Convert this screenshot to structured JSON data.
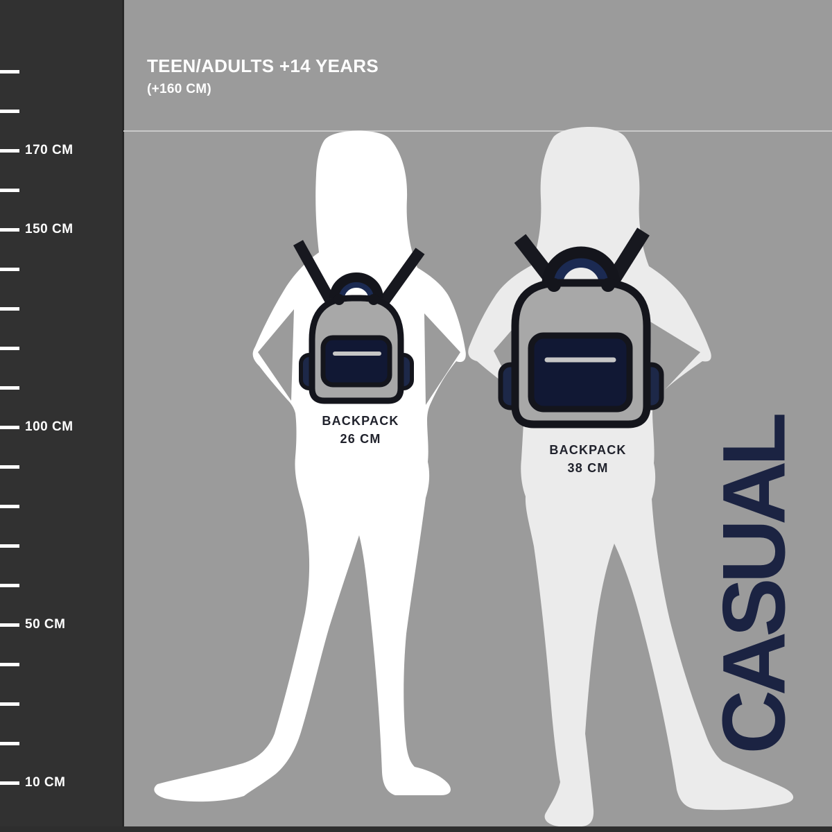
{
  "meta": {
    "description": "Backpack size guide infographic comparing two casual backpack sizes on teen/adult silhouettes against a height ruler"
  },
  "header": {
    "title": "TEEN/ADULTS +14 YEARS",
    "subtitle": "(+160 CM)"
  },
  "ruler": {
    "unit": "CM",
    "tick_step_cm": 10,
    "ticks_cm": [
      190,
      180,
      170,
      160,
      150,
      140,
      130,
      120,
      110,
      100,
      90,
      80,
      70,
      60,
      50,
      40,
      30,
      20,
      10
    ],
    "labels": [
      {
        "cm": 170,
        "text": "170 CM"
      },
      {
        "cm": 150,
        "text": "150 CM"
      },
      {
        "cm": 100,
        "text": "100 CM"
      },
      {
        "cm": 50,
        "text": "50 CM"
      },
      {
        "cm": 10,
        "text": "10 CM"
      }
    ]
  },
  "figures": [
    {
      "name": "silhouette-small",
      "backpack": {
        "label_line1": "BACKPACK",
        "label_line2": "26 CM",
        "size_cm": 26
      }
    },
    {
      "name": "silhouette-large",
      "backpack": {
        "label_line1": "BACKPACK",
        "label_line2": "38 CM",
        "size_cm": 38
      }
    }
  ],
  "side_label": "CASUAL",
  "colors": {
    "background": "#9b9b9b",
    "ruler_panel": "#313131",
    "tick_white": "#ffffff",
    "reference_line": "#c9c9c9",
    "figure_small": "#ffffff",
    "figure_large": "#ebebeb",
    "strap_black": "#17181f",
    "backpack_outline": "#14151c",
    "backpack_body_gray": "#a8a8a8",
    "pocket_navy": "#111834",
    "side_pocket_navy": "#1d2848",
    "handle_navy": "#1b2a52",
    "zipper_gray": "#c6c6c6",
    "label_dark": "#20222c",
    "casual_navy": "#1b2342"
  }
}
